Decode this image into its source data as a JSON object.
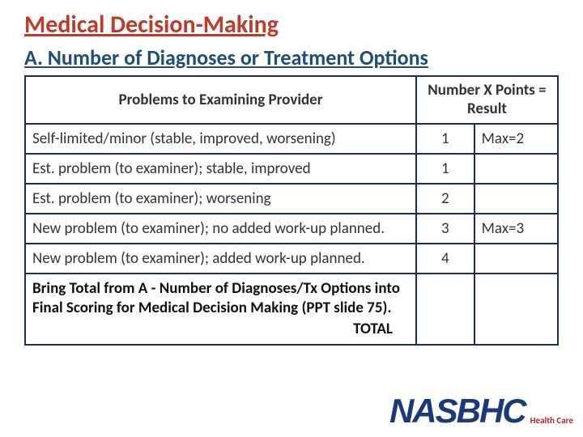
{
  "title": "Medical Decision-Making",
  "subtitle": "A.  Number of Diagnoses or Treatment Options",
  "table": {
    "header_left": "Problems to Examining Provider",
    "header_right": "Number X Points = Result",
    "rows": [
      {
        "problem": "Self-limited/minor (stable, improved, worsening)",
        "points": "1",
        "max": "Max=2"
      },
      {
        "problem": "Est. problem (to examiner); stable, improved",
        "points": "1",
        "max": ""
      },
      {
        "problem": "Est. problem (to examiner); worsening",
        "points": "2",
        "max": ""
      },
      {
        "problem": "New problem (to examiner); no added work-up planned.",
        "points": "3",
        "max": "Max=3"
      },
      {
        "problem": "New problem (to examiner); added work-up planned.",
        "points": "4",
        "max": ""
      }
    ],
    "total_text": "Bring Total from A - Number of Diagnoses/Tx Options into Final Scoring for Medical Decision Making (PPT slide 75).",
    "total_label": "TOTAL"
  },
  "logo": {
    "main": "NASBHC",
    "sub": "Health Care"
  },
  "colors": {
    "title_color": "#bf3a27",
    "subtitle_color": "#1f4e79",
    "border_color": "#1b2a6b",
    "logo_color": "#1b3a7a",
    "logo_sub_color": "#b22a2a"
  }
}
